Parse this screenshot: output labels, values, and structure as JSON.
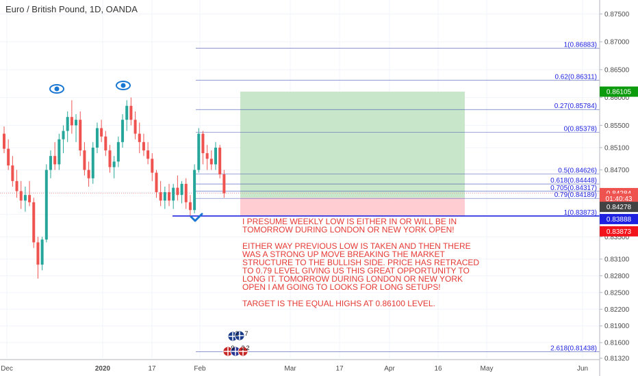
{
  "title": "Euro / British Pound, 1D, OANDA",
  "colors": {
    "up": "#26a69a",
    "down": "#ef5350",
    "fib": "#3f51b5",
    "note": "#e53935",
    "target_zone": "#c8e6c9",
    "stop_zone": "#ffcdd2",
    "tag_green": "#0c9b0c",
    "tag_red": "#ef5350",
    "tag_dark": "#424242",
    "tag_blue": "#1e22e0",
    "tag_redbox": "#f2161c"
  },
  "note": {
    "p1": "I PRESUME WEEKLY LOW IS EITHER IN OR WILL BE IN TOMORROW DURING LONDON OR NEW YORK OPEN!",
    "p2": "EITHER WAY PREVIOUS LOW IS TAKEN AND THEN THERE WAS A STRONG UP MOVE BREAKING THE MARKET STRUCTURE TO THE BULLISH SIDE. PRICE HAS RETRACED TO 0.79 LEVEL GIVING US THIS GREAT OPPORTUNITY TO LONG IT. TOMORROW DURING LONDON OR NEW YORK OPEN I AM GOING TO LOOKS FOR LONG SETUPS!",
    "p3": "TARGET IS THE EQUAL HIGHS AT 0.86100 LEVEL."
  },
  "icons": {
    "eye": "eye-icon",
    "check": "checkmark-icon",
    "flags": "event-flags-icon"
  },
  "events": {
    "top_count_a": "2",
    "top_count_b": "7",
    "bottom_count_a": "9",
    "bottom_count_b": "2",
    "bottom_count_c": "2"
  },
  "chart_data": {
    "type": "candlestick",
    "ylim": [
      0.8132,
      0.8775
    ],
    "yticks": [
      "0.87500",
      "0.87000",
      "0.86500",
      "0.86000",
      "0.85500",
      "0.85100",
      "0.84700",
      "0.83500",
      "0.83100",
      "0.82800",
      "0.82500",
      "0.82200",
      "0.81900",
      "0.81600",
      "0.81320"
    ],
    "xlabels": [
      "Dec",
      "2020",
      "17",
      "Feb",
      "Mar",
      "17",
      "Apr",
      "16",
      "May",
      "Jun"
    ],
    "fib_levels": [
      {
        "label": "1(0.86883)",
        "value": 0.86883
      },
      {
        "label": "0.62(0.86311)",
        "value": 0.86311
      },
      {
        "label": "0.27(0.85784)",
        "value": 0.85784
      },
      {
        "label": "0(0.85378)",
        "value": 0.85378
      },
      {
        "label": "0.5(0.84626)",
        "value": 0.84626
      },
      {
        "label": "0.618(0.84448)",
        "value": 0.84448
      },
      {
        "label": "0.705(0.84317)",
        "value": 0.84317
      },
      {
        "label": "0.79(0.84189)",
        "value": 0.84189
      },
      {
        "label": "1(0.83873)",
        "value": 0.83873
      },
      {
        "label": "2.618(0.81438)",
        "value": 0.81438
      }
    ],
    "price_tags": [
      {
        "label": "0.86105",
        "value": 0.86105,
        "color": "#0c9b0c"
      },
      {
        "label": "0.84284",
        "value": 0.84284,
        "color": "#ef5350"
      },
      {
        "label": "01:40:43",
        "value": 0.84184,
        "color": "#ef5350"
      },
      {
        "label": "0.84278",
        "value": 0.84036,
        "color": "#424242"
      },
      {
        "label": "0.83888",
        "value": 0.83818,
        "color": "#1e22e0"
      },
      {
        "label": "0.83873",
        "value": 0.83598,
        "color": "#f2161c"
      }
    ],
    "position": {
      "entry": 0.842,
      "target": 0.86105,
      "stop": 0.83873
    },
    "candles": [
      [
        0.8535,
        0.8548,
        0.85,
        0.8508
      ],
      [
        0.8508,
        0.8525,
        0.847,
        0.8478
      ],
      [
        0.8478,
        0.8495,
        0.844,
        0.845
      ],
      [
        0.845,
        0.847,
        0.842,
        0.8432
      ],
      [
        0.8432,
        0.845,
        0.84,
        0.8415
      ],
      [
        0.8415,
        0.844,
        0.8395,
        0.8425
      ],
      [
        0.8425,
        0.845,
        0.8405,
        0.8412
      ],
      [
        0.8412,
        0.842,
        0.833,
        0.834
      ],
      [
        0.834,
        0.835,
        0.8275,
        0.83
      ],
      [
        0.83,
        0.835,
        0.829,
        0.8345
      ],
      [
        0.8345,
        0.848,
        0.834,
        0.847
      ],
      [
        0.847,
        0.8505,
        0.8455,
        0.8495
      ],
      [
        0.8495,
        0.852,
        0.847,
        0.848
      ],
      [
        0.848,
        0.8535,
        0.847,
        0.8525
      ],
      [
        0.8525,
        0.855,
        0.85,
        0.854
      ],
      [
        0.854,
        0.8575,
        0.852,
        0.8565
      ],
      [
        0.8565,
        0.8595,
        0.8535,
        0.855
      ],
      [
        0.855,
        0.857,
        0.852,
        0.856
      ],
      [
        0.856,
        0.8575,
        0.8495,
        0.8505
      ],
      [
        0.8505,
        0.852,
        0.846,
        0.847
      ],
      [
        0.847,
        0.8485,
        0.844,
        0.8455
      ],
      [
        0.8455,
        0.852,
        0.8445,
        0.851
      ],
      [
        0.851,
        0.8555,
        0.85,
        0.8545
      ],
      [
        0.8545,
        0.856,
        0.852,
        0.853
      ],
      [
        0.853,
        0.854,
        0.8495,
        0.8505
      ],
      [
        0.8505,
        0.8515,
        0.8465,
        0.8475
      ],
      [
        0.8475,
        0.8495,
        0.8455,
        0.8485
      ],
      [
        0.8485,
        0.853,
        0.8475,
        0.852
      ],
      [
        0.852,
        0.857,
        0.851,
        0.856
      ],
      [
        0.856,
        0.8595,
        0.854,
        0.8585
      ],
      [
        0.8585,
        0.86,
        0.855,
        0.856
      ],
      [
        0.856,
        0.8575,
        0.8525,
        0.8535
      ],
      [
        0.8535,
        0.8555,
        0.85,
        0.852
      ],
      [
        0.852,
        0.8535,
        0.8495,
        0.8505
      ],
      [
        0.8505,
        0.852,
        0.848,
        0.849
      ],
      [
        0.849,
        0.85,
        0.845,
        0.8465
      ],
      [
        0.8465,
        0.847,
        0.842,
        0.843
      ],
      [
        0.843,
        0.845,
        0.8405,
        0.8415
      ],
      [
        0.8415,
        0.844,
        0.84,
        0.843
      ],
      [
        0.843,
        0.8445,
        0.8405,
        0.8415
      ],
      [
        0.8415,
        0.8445,
        0.84,
        0.8438
      ],
      [
        0.8438,
        0.846,
        0.8415,
        0.8425
      ],
      [
        0.8425,
        0.845,
        0.841,
        0.8445
      ],
      [
        0.8445,
        0.8455,
        0.84,
        0.8412
      ],
      [
        0.8412,
        0.8425,
        0.8388,
        0.8398
      ],
      [
        0.8398,
        0.848,
        0.8392,
        0.847
      ],
      [
        0.847,
        0.8545,
        0.8465,
        0.8535
      ],
      [
        0.8535,
        0.854,
        0.848,
        0.85
      ],
      [
        0.85,
        0.8515,
        0.847,
        0.849
      ],
      [
        0.849,
        0.8505,
        0.847,
        0.848
      ],
      [
        0.848,
        0.852,
        0.847,
        0.851
      ],
      [
        0.851,
        0.8515,
        0.8455,
        0.8462
      ],
      [
        0.8462,
        0.847,
        0.842,
        0.8428
      ]
    ]
  }
}
